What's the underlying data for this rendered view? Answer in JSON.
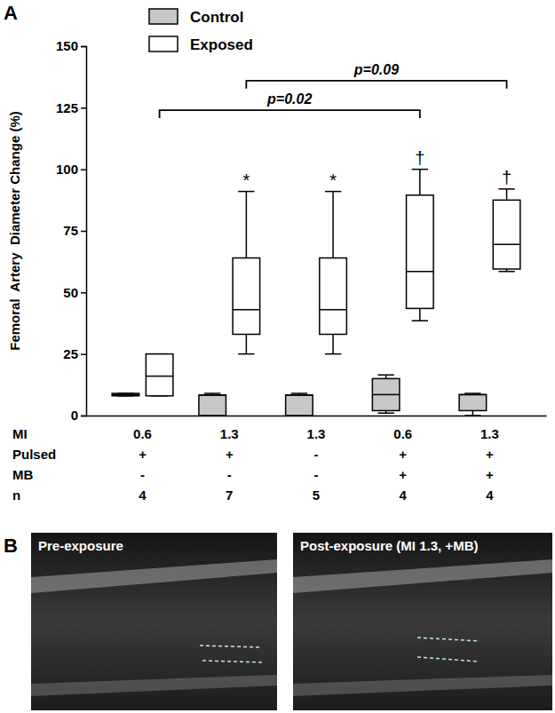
{
  "chart_data": {
    "type": "box",
    "panel_label": "A",
    "y_label": "Femoral  Artery  Diameter Change (%)",
    "ylim": [
      0,
      150
    ],
    "yticks": [
      0,
      25,
      50,
      75,
      100,
      125,
      150
    ],
    "categories": [
      null,
      null,
      null,
      null,
      null
    ],
    "legend": "top-left",
    "series": [
      {
        "name": "Control",
        "color": "#c8c8c8",
        "values": [
          {
            "min": 8,
            "q1": 8,
            "median": 8.5,
            "q3": 9,
            "max": 9
          },
          {
            "min": 0,
            "q1": 0,
            "median": 8.3,
            "q3": 8.3,
            "max": 9
          },
          {
            "min": 0,
            "q1": 0,
            "median": 8.3,
            "q3": 8.3,
            "max": 9
          },
          {
            "min": 1,
            "q1": 2,
            "median": 8.5,
            "q3": 15,
            "max": 16.5
          },
          {
            "min": 0,
            "q1": 2,
            "median": 8.5,
            "q3": 8.5,
            "max": 9
          }
        ]
      },
      {
        "name": "Exposed",
        "color": "#ffffff",
        "values": [
          {
            "min": 8,
            "q1": 8,
            "median": 16,
            "q3": 25,
            "max": 25
          },
          {
            "min": 25,
            "q1": 33,
            "median": 43,
            "q3": 64,
            "max": 91
          },
          {
            "min": 25,
            "q1": 33,
            "median": 43,
            "q3": 64,
            "max": 91
          },
          {
            "min": 38.5,
            "q1": 43.5,
            "median": 58.5,
            "q3": 89.5,
            "max": 100
          },
          {
            "min": 58.5,
            "q1": 59.5,
            "median": 69.5,
            "q3": 87.5,
            "max": 92
          }
        ]
      }
    ],
    "annotations": [
      {
        "text": "*",
        "category": 1,
        "series": 1
      },
      {
        "text": "*",
        "category": 2,
        "series": 1
      },
      {
        "text": "†",
        "category": 3,
        "series": 1
      },
      {
        "text": "†",
        "category": 4,
        "series": 1
      }
    ],
    "brackets": [
      {
        "text": "p=0.02",
        "from": 0,
        "to": 3,
        "y": 124
      },
      {
        "text": "p=0.09",
        "from": 1,
        "to": 4,
        "y": 136
      }
    ],
    "x_table": {
      "rows": [
        {
          "label": "MI",
          "values": [
            "0.6",
            "1.3",
            "1.3",
            "0.6",
            "1.3"
          ]
        },
        {
          "label": "Pulsed",
          "values": [
            "+",
            "+",
            "-",
            "+",
            "+"
          ]
        },
        {
          "label": "MB",
          "values": [
            "-",
            "-",
            "-",
            "+",
            "+"
          ]
        },
        {
          "label": "n",
          "values": [
            "4",
            "7",
            "5",
            "4",
            "4"
          ]
        }
      ]
    }
  },
  "panel_b": {
    "label": "B",
    "images": [
      {
        "caption": "Pre-exposure"
      },
      {
        "caption": "Post-exposure (MI 1.3, +MB)"
      }
    ]
  }
}
